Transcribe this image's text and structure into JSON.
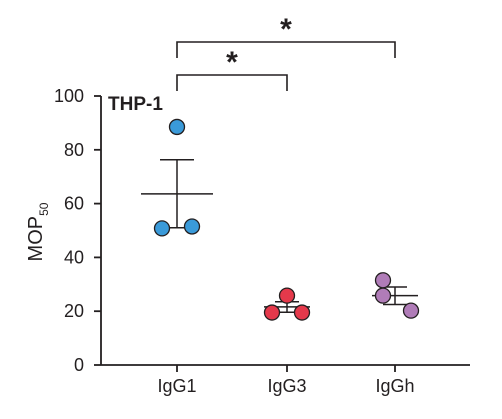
{
  "chart_data": {
    "type": "scatter",
    "panel_label": "THP-1",
    "ylabel_main": "MOP",
    "ylabel_sub": "50",
    "ylim": [
      0,
      100
    ],
    "yticks": [
      "0",
      "20",
      "40",
      "60",
      "80",
      "100"
    ],
    "categories": [
      "IgG1",
      "IgG3",
      "IgGh"
    ],
    "series": [
      {
        "category": "IgG1",
        "color": "#3a9ad9",
        "points": [
          88.5,
          50.8,
          51.5
        ],
        "mean": 63.6,
        "sem_upper": 76.3,
        "sem_lower": 51.0
      },
      {
        "category": "IgG3",
        "color": "#e5394b",
        "points": [
          25.8,
          19.5,
          19.5
        ],
        "mean": 21.6,
        "sem_upper": 23.5,
        "sem_lower": 19.6
      },
      {
        "category": "IgGh",
        "color": "#b07cb8",
        "points": [
          31.5,
          25.8,
          20.2
        ],
        "mean": 25.8,
        "sem_upper": 29.0,
        "sem_lower": 22.5
      }
    ],
    "significance": [
      {
        "from": "IgG1",
        "to": "IgG3",
        "label": "*"
      },
      {
        "from": "IgG1",
        "to": "IgGh",
        "label": "*"
      }
    ]
  }
}
